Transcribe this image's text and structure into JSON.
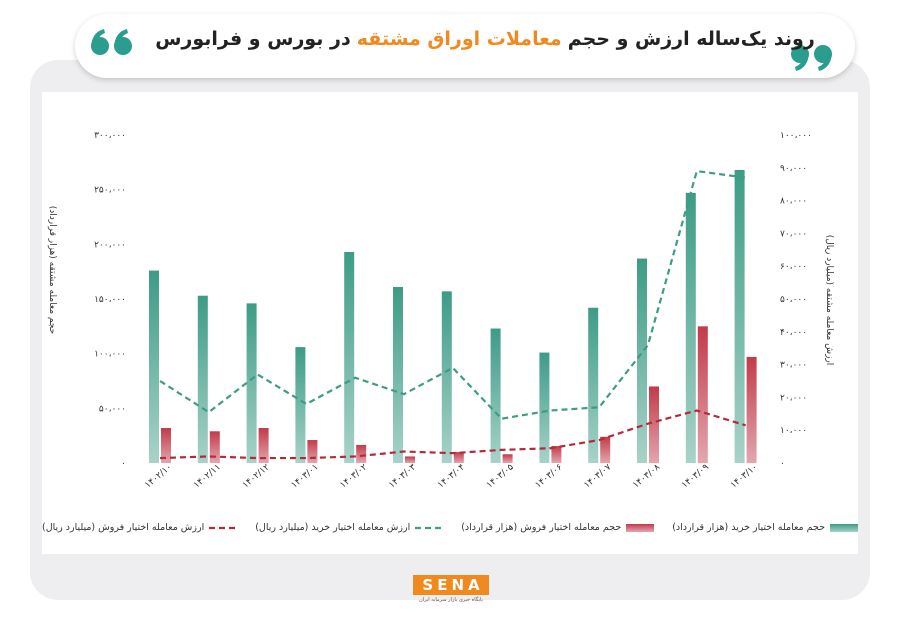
{
  "title_segments": [
    "روند یک‌ساله ارزش و حجم",
    "معاملات اوراق مشتقه",
    "در بورس و فرابورس"
  ],
  "chart_data": {
    "type": "combo",
    "ylabel": "حجم معامله مشتقه (هزار قرارداد)",
    "y2label": "ارزش معامله مشتقه (میلیارد ریال)",
    "categories": [
      "۱۴۰۲/۱۰",
      "۱۴۰۲/۱۱",
      "۱۴۰۲/۱۲",
      "۱۴۰۳/۰۱",
      "۱۴۰۳/۰۲",
      "۱۴۰۳/۰۳",
      "۱۴۰۳/۰۴",
      "۱۴۰۳/۰۵",
      "۱۴۰۳/۰۶",
      "۱۴۰۳/۰۷",
      "۱۴۰۳/۰۸",
      "۱۴۰۳/۰۹",
      "۱۴۰۳/۱۰"
    ],
    "series": [
      {
        "name": "حجم معامله اختیار خرید (هزار قرارداد)",
        "type": "bar",
        "color": "#3d9c86",
        "axis": "y",
        "values": [
          176000,
          153000,
          146000,
          106000,
          193000,
          161000,
          157000,
          123000,
          101000,
          142000,
          187000,
          247000,
          268000
        ]
      },
      {
        "name": "حجم معامله اختیار فروش (هزار قرارداد)",
        "type": "bar",
        "color": "#c23a4a",
        "axis": "y",
        "values": [
          32000,
          29000,
          32000,
          21000,
          16500,
          6000,
          10000,
          8000,
          15500,
          24000,
          70000,
          125000,
          97000
        ]
      },
      {
        "name": "ارزش معامله اختیار خرید (میلیارد ریال)",
        "type": "line",
        "color": "#3d9c86",
        "axis": "y2",
        "values": [
          25000,
          15500,
          27000,
          18000,
          26000,
          21000,
          29000,
          13500,
          16000,
          17000,
          36000,
          89000,
          87000
        ]
      },
      {
        "name": "ارزش معامله اختیار فروش (میلیارد ریال)",
        "type": "line",
        "color": "#b22a3c",
        "axis": "y2",
        "values": [
          1500,
          2000,
          1500,
          1500,
          2000,
          3500,
          3000,
          4000,
          4500,
          7000,
          12000,
          16000,
          11500
        ]
      }
    ],
    "ylim": [
      0,
      300000
    ],
    "yticks": [
      {
        "value": 0,
        "label": "۰"
      },
      {
        "value": 50000,
        "label": "۵۰،۰۰۰"
      },
      {
        "value": 100000,
        "label": "۱۰۰،۰۰۰"
      },
      {
        "value": 150000,
        "label": "۱۵۰،۰۰۰"
      },
      {
        "value": 200000,
        "label": "۲۰۰،۰۰۰"
      },
      {
        "value": 250000,
        "label": "۲۵۰،۰۰۰"
      },
      {
        "value": 300000,
        "label": "۳۰۰،۰۰۰"
      }
    ],
    "y2lim": [
      0,
      100000
    ],
    "y2ticks": [
      {
        "value": 0,
        "label": "۰"
      },
      {
        "value": 10000,
        "label": "۱۰،۰۰۰"
      },
      {
        "value": 20000,
        "label": "۲۰،۰۰۰"
      },
      {
        "value": 30000,
        "label": "۳۰،۰۰۰"
      },
      {
        "value": 40000,
        "label": "۴۰،۰۰۰"
      },
      {
        "value": 50000,
        "label": "۵۰،۰۰۰"
      },
      {
        "value": 60000,
        "label": "۶۰،۰۰۰"
      },
      {
        "value": 70000,
        "label": "۷۰،۰۰۰"
      },
      {
        "value": 80000,
        "label": "۸۰،۰۰۰"
      },
      {
        "value": 90000,
        "label": "۹۰،۰۰۰"
      },
      {
        "value": 100000,
        "label": "۱۰۰،۰۰۰"
      }
    ],
    "grid": false
  },
  "logo": {
    "text": "SENA",
    "tagline": "پایگاه خبری بازار سرمایه ایران"
  }
}
